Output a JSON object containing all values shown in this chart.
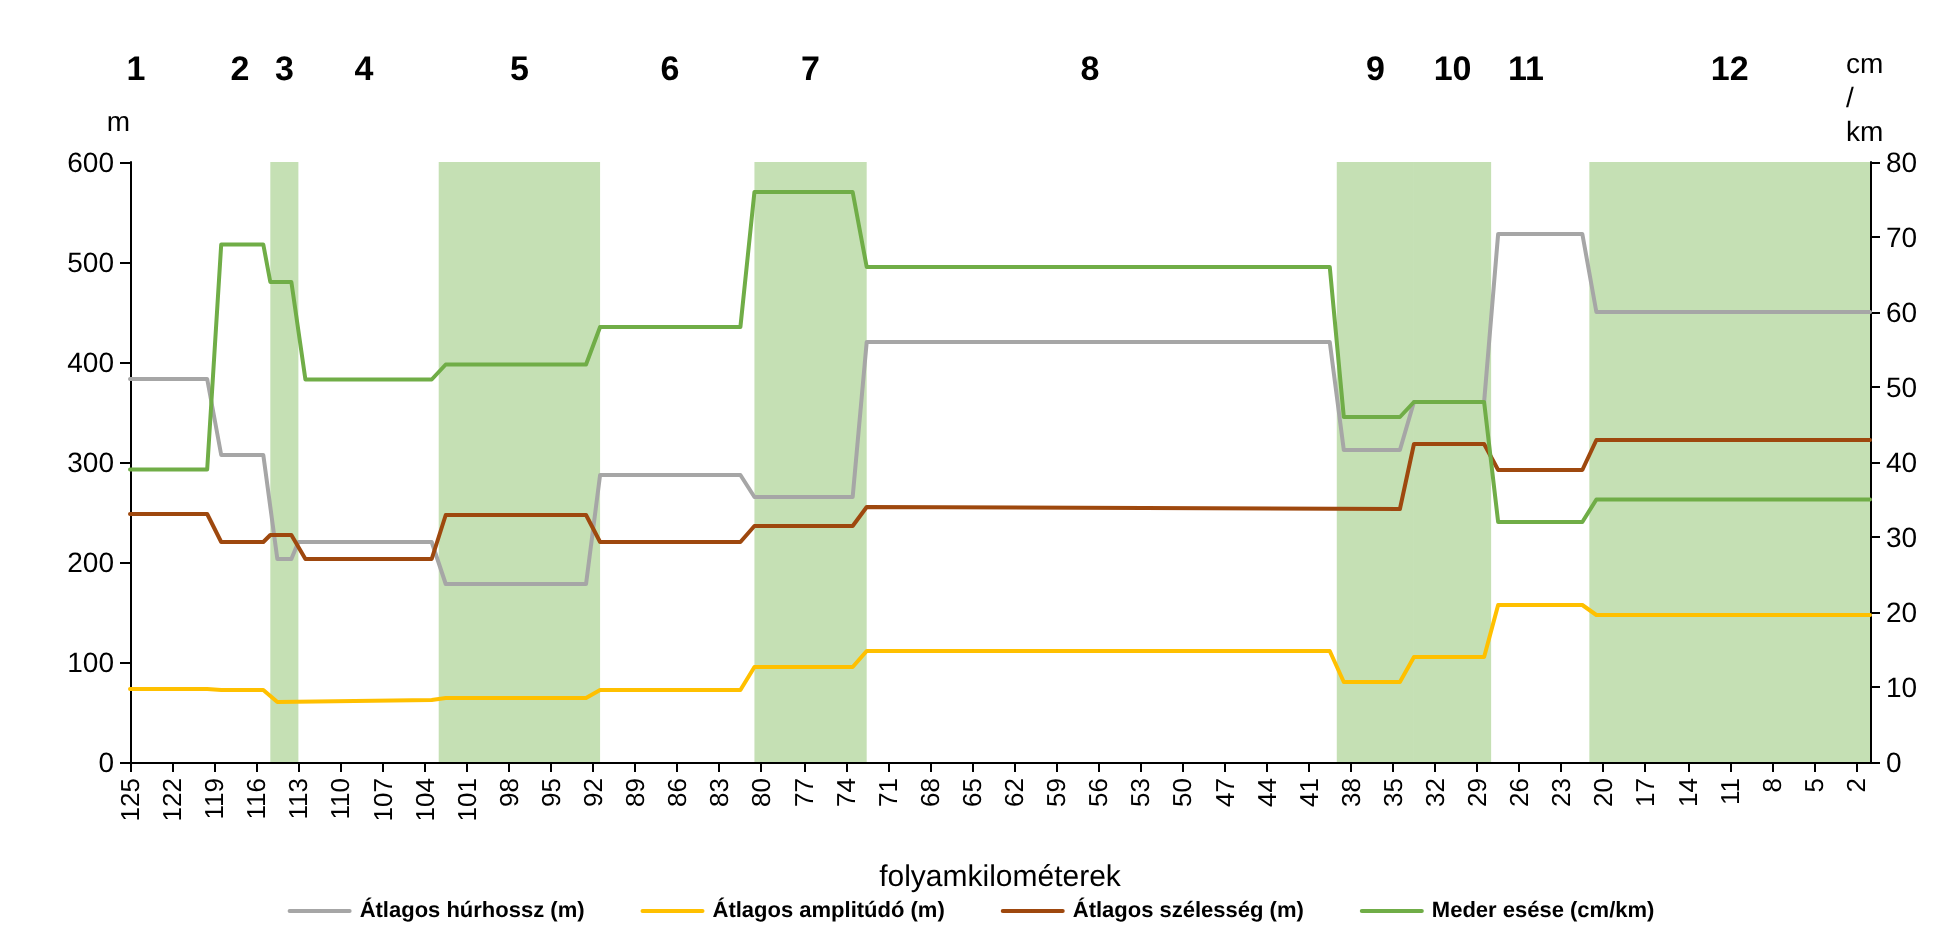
{
  "chart_data": {
    "type": "line",
    "xlabel": "folyamkilométerek",
    "ylabel": "m",
    "y2label": "cm / km",
    "xlim": [
      125,
      1
    ],
    "xticks": [
      125,
      122,
      119,
      116,
      113,
      110,
      107,
      104,
      101,
      98,
      95,
      92,
      89,
      86,
      83,
      80,
      77,
      74,
      71,
      68,
      65,
      62,
      59,
      56,
      53,
      50,
      47,
      44,
      41,
      38,
      35,
      32,
      29,
      26,
      23,
      20,
      17,
      14,
      11,
      8,
      5,
      2
    ],
    "ylim": [
      0,
      600
    ],
    "yticks": [
      0,
      100,
      200,
      300,
      400,
      500,
      600
    ],
    "y2lim": [
      0,
      80
    ],
    "y2ticks": [
      0,
      10,
      20,
      30,
      40,
      50,
      60,
      70,
      80
    ],
    "grid": false,
    "legend": "bottom",
    "marker": "none",
    "line_style": "solid",
    "series": [
      {
        "name": "Átlagos húrhossz (m)",
        "color": "#a6a6a6",
        "x": [
          125,
          119.5,
          118.5,
          115.5,
          114.5,
          113.5,
          113,
          103.5,
          102.5,
          92.5,
          91.5,
          81.5,
          80.5,
          73.5,
          72.5,
          39.5,
          38.5,
          34.5,
          33.5,
          28.5,
          27.5,
          21.5,
          20.5,
          1
        ],
        "values": [
          383,
          383,
          307,
          307,
          203,
          203,
          220,
          220,
          178,
          178,
          287,
          287,
          265,
          265,
          420,
          420,
          312,
          312,
          360,
          360,
          528,
          528,
          450,
          450
        ]
      },
      {
        "name": "Átlagos amplitúdó (m)",
        "color": "#ffc000",
        "x": [
          125,
          119.5,
          118.5,
          115.5,
          114.5,
          103.5,
          102.5,
          92.5,
          91.5,
          81.5,
          80.5,
          73.5,
          72.5,
          39.5,
          38.5,
          34.5,
          33.5,
          28.5,
          27.5,
          21.5,
          20.5,
          1
        ],
        "values": [
          73,
          73,
          72,
          72,
          60,
          62,
          64,
          64,
          72,
          72,
          95,
          95,
          111,
          111,
          80,
          80,
          105,
          105,
          157,
          157,
          147,
          147
        ]
      },
      {
        "name": "Átlagos szélesség (m)",
        "color": "#9e480e",
        "x": [
          125,
          119.5,
          118.5,
          115.5,
          115,
          113.5,
          112.5,
          103.5,
          102.5,
          92.5,
          91.5,
          81.5,
          80.5,
          73.5,
          72.5,
          34.5,
          33.5,
          28.5,
          27.5,
          21.5,
          20.5,
          1
        ],
        "values": [
          248,
          248,
          220,
          220,
          227,
          227,
          203,
          203,
          247,
          247,
          220,
          220,
          236,
          236,
          255,
          253,
          318,
          318,
          292,
          292,
          322,
          322
        ]
      },
      {
        "name": "Meder esése (cm/km)",
        "color": "#70ad47",
        "axis": "y2",
        "x": [
          125,
          119.5,
          118.5,
          115.5,
          115,
          113.5,
          112.5,
          103.5,
          102.5,
          92.5,
          91.5,
          81.5,
          80.5,
          73.5,
          72.5,
          39.5,
          38.5,
          34.5,
          33.5,
          28.5,
          27.5,
          21.5,
          20.5,
          1
        ],
        "values": [
          39,
          39,
          69,
          69,
          64,
          64,
          51,
          51,
          53,
          53,
          58,
          58,
          76,
          76,
          66,
          66,
          46,
          46,
          48,
          48,
          32,
          32,
          35,
          35
        ]
      }
    ],
    "bands": [
      {
        "axis": "x",
        "from": 115,
        "to": 113,
        "label": "3",
        "color": "#c5e0b4"
      },
      {
        "axis": "x",
        "from": 103,
        "to": 91.5,
        "label": "5",
        "color": "#c5e0b4"
      },
      {
        "axis": "x",
        "from": 80.5,
        "to": 72.5,
        "label": "7",
        "color": "#c5e0b4"
      },
      {
        "axis": "x",
        "from": 39,
        "to": 33.5,
        "label": "9",
        "color": "#c5e0b4"
      },
      {
        "axis": "x",
        "from": 33.5,
        "to": 28,
        "label": "10",
        "color": "#c5e0b4"
      },
      {
        "axis": "x",
        "from": 21,
        "to": 1,
        "label": "12",
        "color": "#c5e0b4"
      }
    ],
    "annotations": [
      "1",
      "2",
      "4",
      "6",
      "8",
      "11"
    ]
  }
}
